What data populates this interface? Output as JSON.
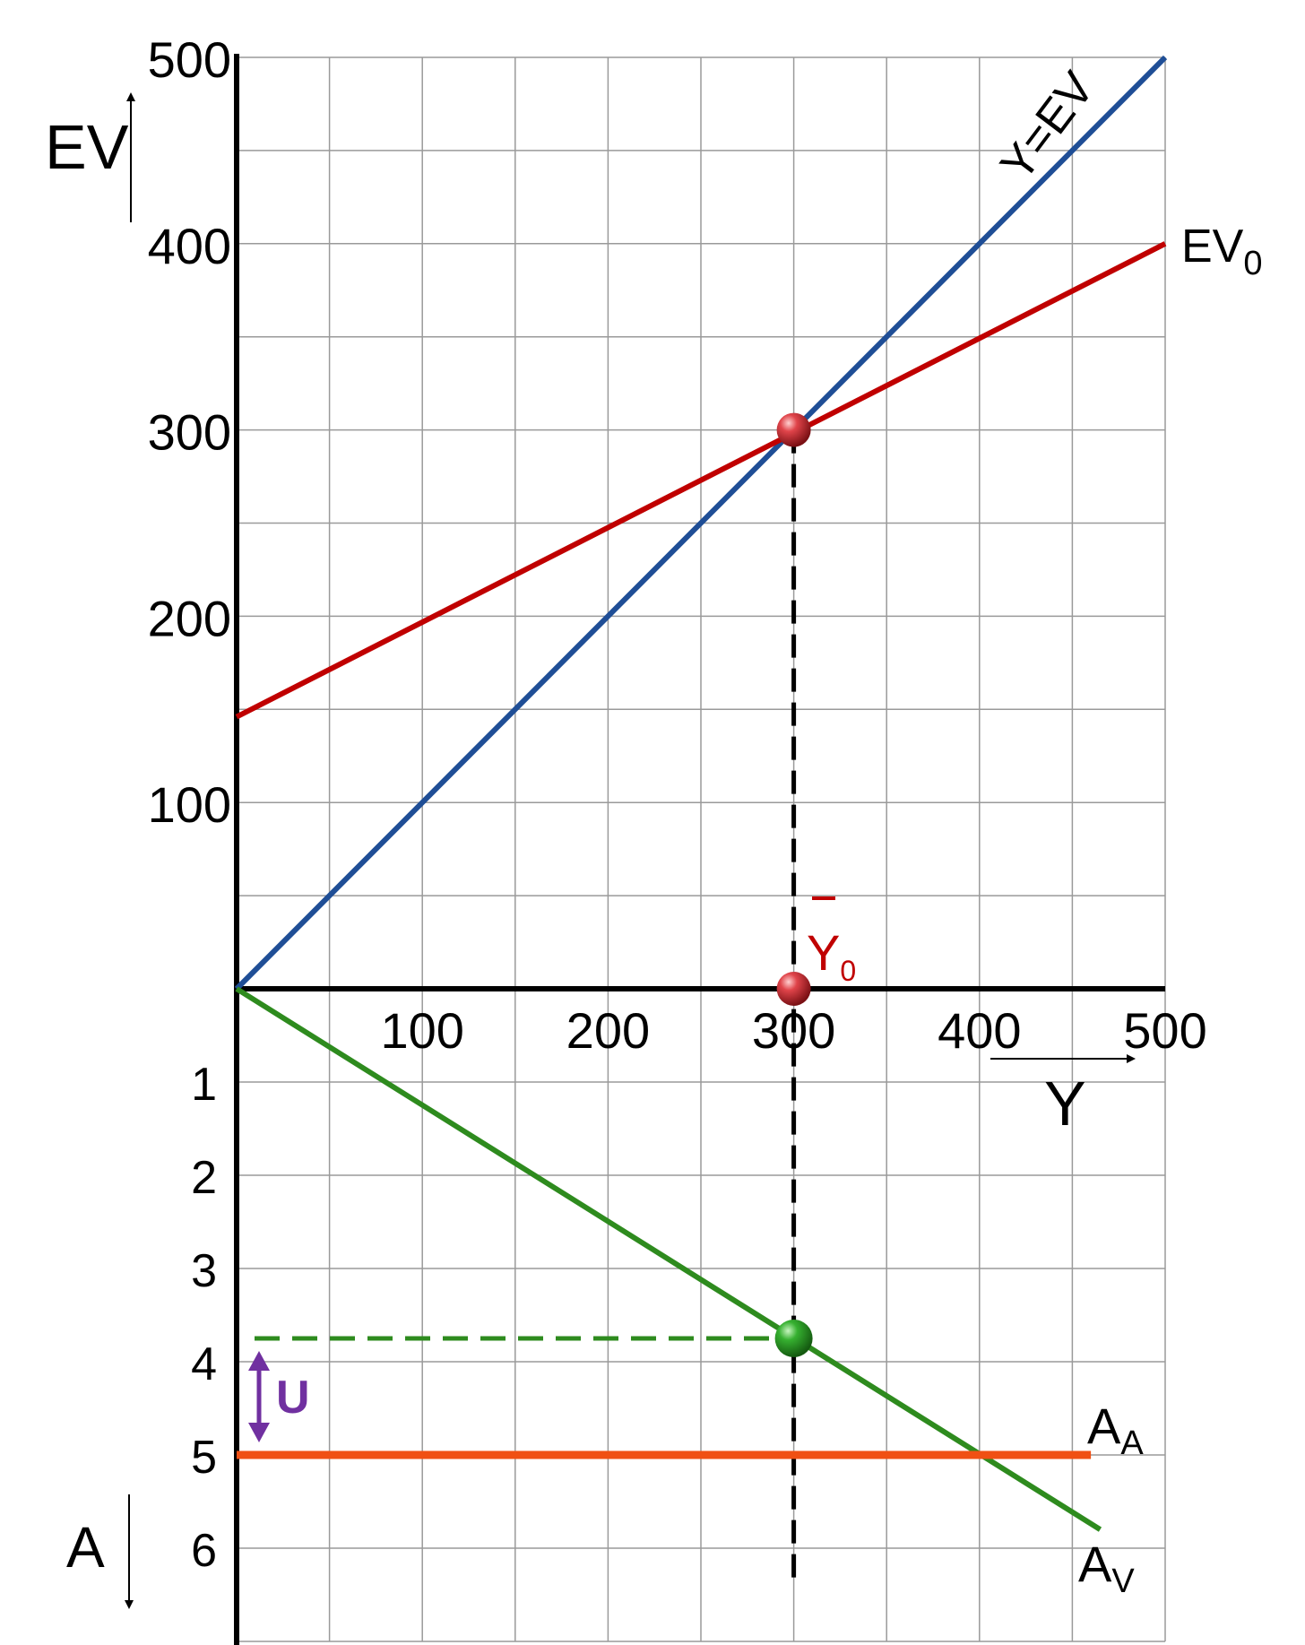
{
  "chart_data": {
    "type": "line",
    "top_panel": {
      "y_axis_label": "EV",
      "x_axis_label": "Y",
      "x_ticks": [
        "100",
        "200",
        "300",
        "400",
        "500"
      ],
      "y_ticks": [
        "100",
        "200",
        "300",
        "400",
        "500"
      ],
      "xlim": [
        0,
        500
      ],
      "ylim": [
        0,
        500
      ],
      "grid": true,
      "series": [
        {
          "name": "Y=EV",
          "color": "#1f4e96",
          "x": [
            0,
            500
          ],
          "y": [
            0,
            500
          ]
        },
        {
          "name_main": "EV",
          "name_sub": "0",
          "color": "#c00000",
          "x": [
            0,
            500
          ],
          "y": [
            146,
            400
          ]
        }
      ],
      "points": [
        {
          "x": 300,
          "y": 300,
          "color": "#c0282d"
        },
        {
          "x": 300,
          "y": 0,
          "color": "#c0282d"
        }
      ],
      "equilibrium_label": {
        "main": "Y",
        "sub": "0",
        "color": "#c00000"
      }
    },
    "bottom_panel": {
      "y_axis_label": "A",
      "y_ticks": [
        "1",
        "2",
        "3",
        "4",
        "5",
        "6"
      ],
      "ylim": [
        0,
        7
      ],
      "series": [
        {
          "name_main": "A",
          "name_sub": "V",
          "color": "#2e8b1e",
          "x": [
            0,
            465
          ],
          "y": [
            0,
            5.8
          ]
        },
        {
          "name_main": "A",
          "name_sub": "A",
          "color": "#f05014",
          "x": [
            0,
            460
          ],
          "y": [
            5,
            5
          ]
        }
      ],
      "points": [
        {
          "x": 300,
          "y": 3.75,
          "color": "#2e9a2e"
        }
      ],
      "gap_label": {
        "text": "U",
        "color": "#7030a0",
        "from": 3.75,
        "to": 5
      }
    },
    "reference_x": 300
  }
}
